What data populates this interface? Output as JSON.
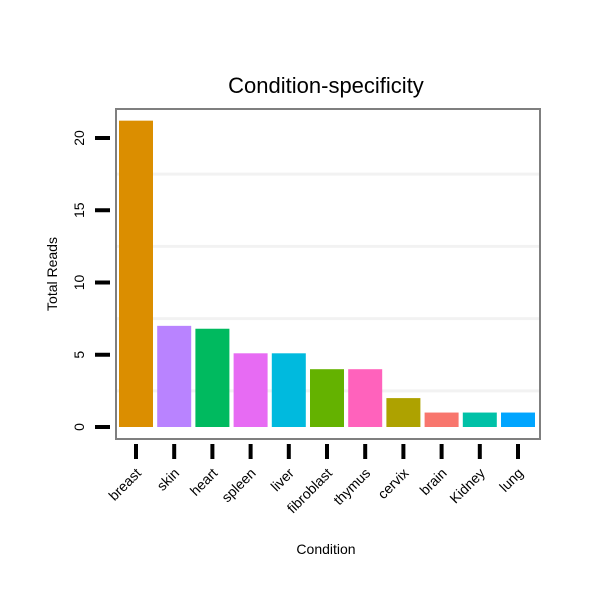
{
  "chart_data": {
    "type": "bar",
    "title": "Condition-specificity",
    "xlabel": "Condition",
    "ylabel": "Total Reads",
    "categories": [
      "breast",
      "skin",
      "heart",
      "spleen",
      "liver",
      "fibroblast",
      "thymus",
      "cervix",
      "brain",
      "Kidney",
      "lung"
    ],
    "values": [
      21.2,
      7.0,
      6.8,
      5.1,
      5.1,
      4.0,
      4.0,
      2.0,
      1.0,
      1.0,
      1.0
    ],
    "colors": [
      "#DB8E00",
      "#B983FF",
      "#00BA5F",
      "#E76BF3",
      "#00BADE",
      "#64B200",
      "#FF62BC",
      "#AEA200",
      "#F8766D",
      "#00C1A7",
      "#00A5FF"
    ],
    "ylim": [
      0,
      22
    ],
    "yticks": [
      0,
      5,
      10,
      15,
      20
    ],
    "grid": true,
    "legend": "none"
  }
}
